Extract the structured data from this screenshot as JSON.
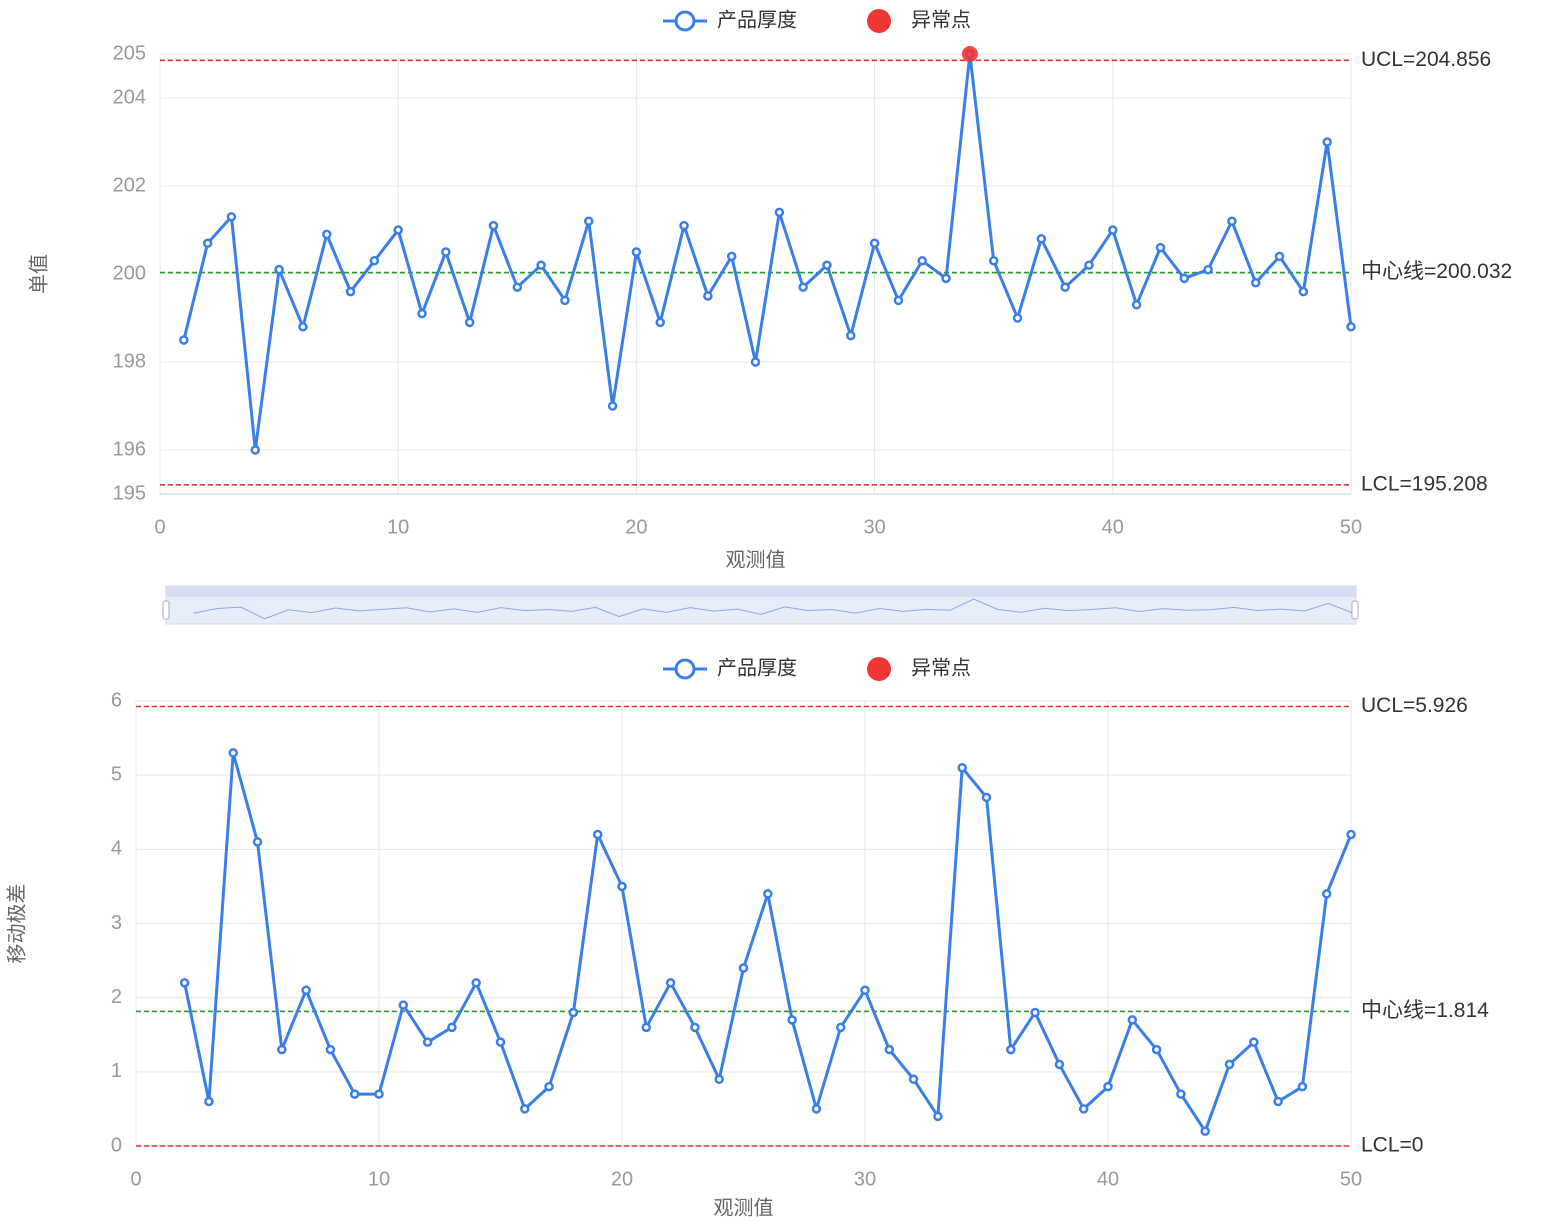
{
  "chart_data": [
    {
      "type": "line",
      "xlabel": "观测值",
      "ylabel": "单值",
      "xlim": [
        0,
        50
      ],
      "xticks": [
        0,
        10,
        20,
        30,
        40,
        50
      ],
      "ylim": [
        195,
        205
      ],
      "yticks": [
        195,
        196,
        198,
        200,
        202,
        204,
        205
      ],
      "grid": true,
      "series": [
        {
          "name": "产品厚度",
          "type": "line",
          "color": "#3a7ee8",
          "x": [
            1,
            2,
            3,
            4,
            5,
            6,
            7,
            8,
            9,
            10,
            11,
            12,
            13,
            14,
            15,
            16,
            17,
            18,
            19,
            20,
            21,
            22,
            23,
            24,
            25,
            26,
            27,
            28,
            29,
            30,
            31,
            32,
            33,
            34,
            35,
            36,
            37,
            38,
            39,
            40,
            41,
            42,
            43,
            44,
            45,
            46,
            47,
            48,
            49,
            50
          ],
          "values": [
            198.5,
            200.7,
            201.3,
            196.0,
            200.1,
            198.8,
            200.9,
            199.6,
            200.3,
            201.0,
            199.1,
            200.5,
            198.9,
            201.1,
            199.7,
            200.2,
            199.4,
            201.2,
            197.0,
            200.5,
            198.9,
            201.1,
            199.5,
            200.4,
            198.0,
            201.4,
            199.7,
            200.2,
            198.6,
            200.7,
            199.4,
            200.3,
            199.9,
            205.0,
            200.3,
            199.0,
            200.8,
            199.7,
            200.2,
            201.0,
            199.3,
            200.6,
            199.9,
            200.1,
            201.2,
            199.8,
            200.4,
            199.6,
            203.0,
            198.8
          ]
        },
        {
          "name": "异常点",
          "type": "scatter",
          "color": "#f03535",
          "x": [
            34
          ],
          "values": [
            205.0
          ]
        }
      ],
      "control_lines": [
        {
          "value": 204.856,
          "label": "UCL=204.856",
          "color": "#e0312f"
        },
        {
          "value": 200.032,
          "label": "中心线=200.032",
          "color": "#2e9a2e"
        },
        {
          "value": 195.208,
          "label": "LCL=195.208",
          "color": "#e0312f"
        }
      ]
    },
    {
      "type": "line",
      "xlabel": "观测值",
      "ylabel": "移动极差",
      "xlim": [
        0,
        50
      ],
      "xticks": [
        0,
        10,
        20,
        30,
        40,
        50
      ],
      "ylim": [
        0,
        6
      ],
      "yticks": [
        0,
        1,
        2,
        3,
        4,
        5,
        6
      ],
      "grid": true,
      "series": [
        {
          "name": "产品厚度",
          "type": "line",
          "color": "#3a7ee8",
          "x": [
            2,
            3,
            4,
            5,
            6,
            7,
            8,
            9,
            10,
            11,
            12,
            13,
            14,
            15,
            16,
            17,
            18,
            19,
            20,
            21,
            22,
            23,
            24,
            25,
            26,
            27,
            28,
            29,
            30,
            31,
            32,
            33,
            34,
            35,
            36,
            37,
            38,
            39,
            40,
            41,
            42,
            43,
            44,
            45,
            46,
            47,
            48,
            49,
            50
          ],
          "values": [
            2.2,
            0.6,
            5.3,
            4.1,
            1.3,
            2.1,
            1.3,
            0.7,
            0.7,
            1.9,
            1.4,
            1.6,
            2.2,
            1.4,
            0.5,
            0.8,
            1.8,
            4.2,
            3.5,
            1.6,
            2.2,
            1.6,
            0.9,
            2.4,
            3.4,
            1.7,
            0.5,
            1.6,
            2.1,
            1.3,
            0.9,
            0.4,
            5.1,
            4.7,
            1.3,
            1.8,
            1.1,
            0.5,
            0.8,
            1.7,
            1.3,
            0.7,
            0.2,
            1.1,
            1.4,
            0.6,
            0.8,
            3.4,
            4.2
          ]
        },
        {
          "name": "异常点",
          "type": "scatter",
          "color": "#f03535",
          "x": [],
          "values": []
        }
      ],
      "control_lines": [
        {
          "value": 5.926,
          "label": "UCL=5.926",
          "color": "#e0312f"
        },
        {
          "value": 1.814,
          "label": "中心线=1.814",
          "color": "#2e9a2e"
        },
        {
          "value": 0,
          "label": "LCL=0",
          "color": "#e0312f"
        }
      ]
    }
  ]
}
